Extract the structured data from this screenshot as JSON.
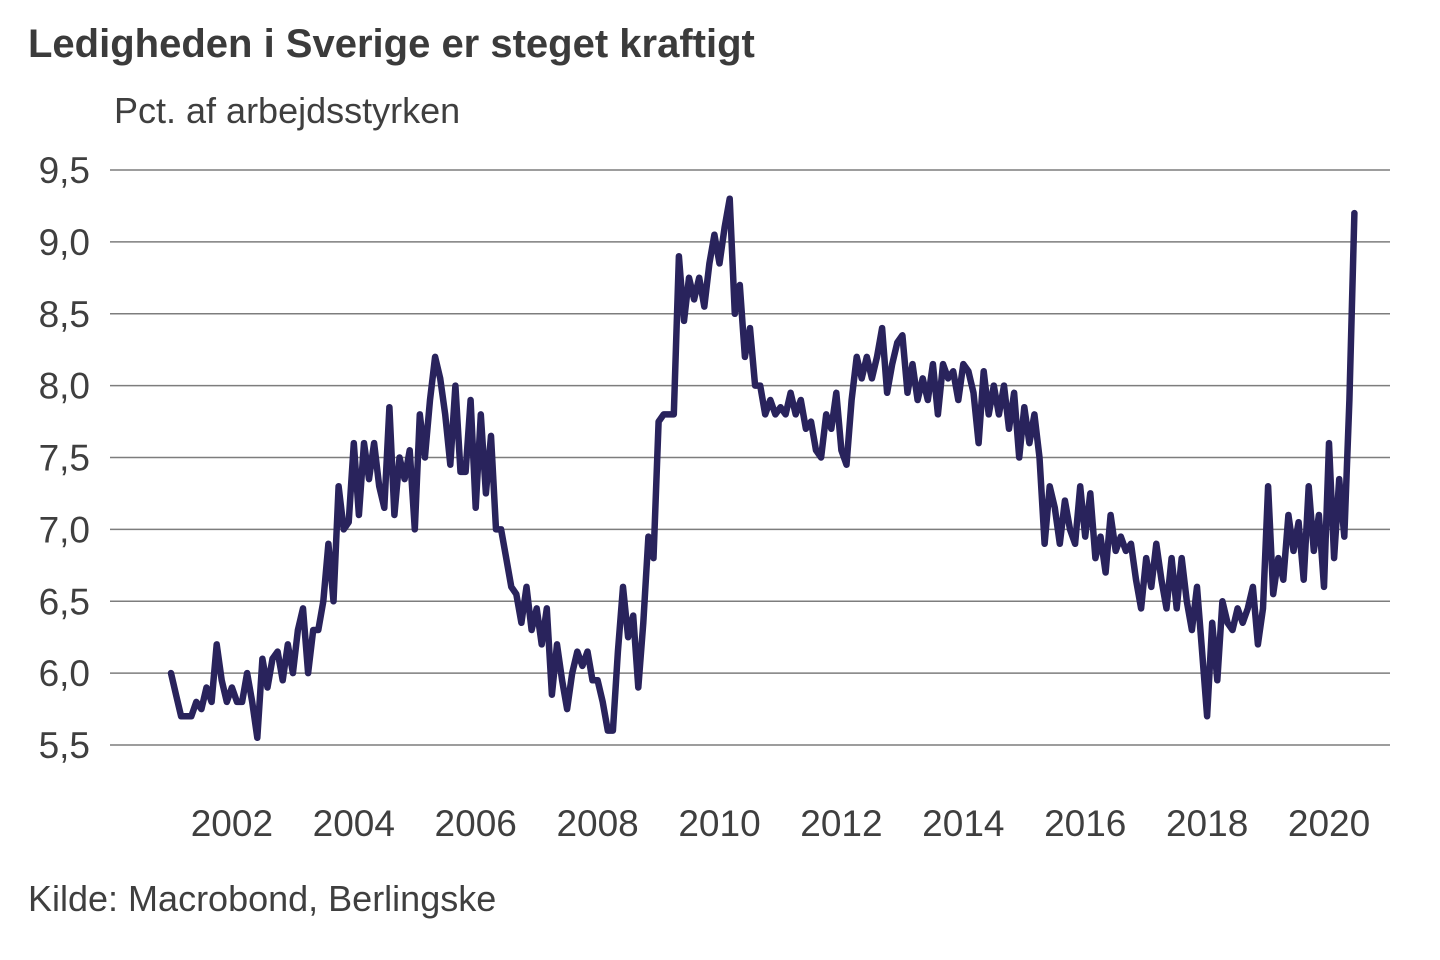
{
  "header": {
    "title": "Ledigheden i Sverige er steget kraftigt",
    "subtitle": "Pct. af arbejdsstyrken"
  },
  "footer": {
    "source": "Kilde: Macrobond, Berlingske"
  },
  "chart_data": {
    "type": "line",
    "title": "Ledigheden i Sverige er steget kraftigt",
    "ylabel": "Pct. af arbejdsstyrken",
    "source": "Kilde: Macrobond, Berlingske",
    "frequency": "monthly",
    "start_year": 2001,
    "start_month": 1,
    "end_label": "2020-06",
    "values": [
      6.0,
      5.85,
      5.7,
      5.7,
      5.7,
      5.8,
      5.75,
      5.9,
      5.8,
      6.2,
      5.95,
      5.8,
      5.9,
      5.8,
      5.8,
      6.0,
      5.8,
      5.55,
      6.1,
      5.9,
      6.1,
      6.15,
      5.95,
      6.2,
      6.0,
      6.3,
      6.45,
      6.0,
      6.3,
      6.3,
      6.5,
      6.9,
      6.5,
      7.3,
      7.0,
      7.05,
      7.6,
      7.1,
      7.6,
      7.35,
      7.6,
      7.3,
      7.15,
      7.85,
      7.1,
      7.5,
      7.35,
      7.55,
      7.0,
      7.8,
      7.5,
      7.9,
      8.2,
      8.05,
      7.8,
      7.45,
      8.0,
      7.4,
      7.4,
      7.9,
      7.15,
      7.8,
      7.25,
      7.65,
      7.0,
      7.0,
      6.8,
      6.6,
      6.55,
      6.35,
      6.6,
      6.3,
      6.45,
      6.2,
      6.45,
      5.85,
      6.2,
      5.95,
      5.75,
      6.0,
      6.15,
      6.05,
      6.15,
      5.95,
      5.95,
      5.8,
      5.6,
      5.6,
      6.15,
      6.6,
      6.25,
      6.4,
      5.9,
      6.35,
      6.95,
      6.8,
      7.75,
      7.8,
      7.8,
      7.8,
      8.9,
      8.45,
      8.75,
      8.6,
      8.75,
      8.55,
      8.85,
      9.05,
      8.85,
      9.1,
      9.3,
      8.5,
      8.7,
      8.2,
      8.4,
      8.0,
      8.0,
      7.8,
      7.9,
      7.8,
      7.85,
      7.8,
      7.95,
      7.8,
      7.9,
      7.7,
      7.75,
      7.55,
      7.5,
      7.8,
      7.7,
      7.95,
      7.55,
      7.45,
      7.9,
      8.2,
      8.05,
      8.2,
      8.05,
      8.2,
      8.4,
      7.95,
      8.15,
      8.3,
      8.35,
      7.95,
      8.15,
      7.9,
      8.05,
      7.9,
      8.15,
      7.8,
      8.15,
      8.05,
      8.1,
      7.9,
      8.15,
      8.1,
      7.95,
      7.6,
      8.1,
      7.8,
      8.0,
      7.8,
      8.0,
      7.7,
      7.95,
      7.5,
      7.85,
      7.6,
      7.8,
      7.5,
      6.9,
      7.3,
      7.15,
      6.9,
      7.2,
      7.0,
      6.9,
      7.3,
      6.95,
      7.25,
      6.8,
      6.95,
      6.7,
      7.1,
      6.85,
      6.95,
      6.85,
      6.9,
      6.65,
      6.45,
      6.8,
      6.6,
      6.9,
      6.65,
      6.45,
      6.8,
      6.45,
      6.8,
      6.5,
      6.3,
      6.6,
      6.15,
      5.7,
      6.35,
      5.95,
      6.5,
      6.35,
      6.3,
      6.45,
      6.35,
      6.45,
      6.6,
      6.2,
      6.45,
      7.3,
      6.55,
      6.8,
      6.65,
      7.1,
      6.85,
      7.05,
      6.65,
      7.3,
      6.85,
      7.1,
      6.6,
      7.6,
      6.8,
      7.35,
      6.95,
      7.9,
      9.2
    ],
    "x_axis": {
      "min": 2000,
      "max": 2021,
      "tick_values": [
        2002,
        2004,
        2006,
        2008,
        2010,
        2012,
        2014,
        2016,
        2018,
        2020
      ],
      "tick_labels": [
        "2002",
        "2004",
        "2006",
        "2008",
        "2010",
        "2012",
        "2014",
        "2016",
        "2018",
        "2020"
      ]
    },
    "y_axis": {
      "min": 5.5,
      "max": 9.5,
      "tick_values": [
        9.5,
        9.0,
        8.5,
        8.0,
        7.5,
        7.0,
        6.5,
        6.0,
        5.5
      ],
      "tick_labels": [
        "9,5",
        "9,0",
        "8,5",
        "8,0",
        "7,5",
        "7,0",
        "6,5",
        "6,0",
        "5,5"
      ]
    },
    "grid": true,
    "legend_position": "none",
    "line_color": "#29235C",
    "grid_color": "#7d7d7d",
    "text_color": "#3f3f3f"
  }
}
